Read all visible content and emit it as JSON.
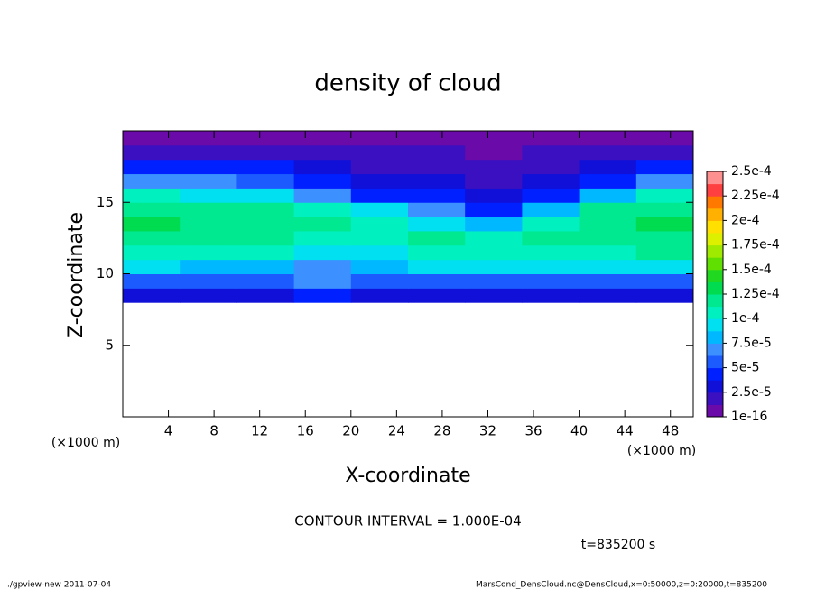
{
  "chart_data": {
    "type": "heatmap",
    "title": "density of cloud",
    "x_label": "X-coordinate",
    "y_label": "Z-coordinate",
    "x_unit_label": "(×1000 m)",
    "y_unit_label": "(×1000 m)",
    "contour_note": "CONTOUR INTERVAL = 1.000E-04",
    "time_label": "t=835200 s",
    "footer_left": "./gpview-new  2011-07-04",
    "footer_right": "MarsCond_DensCloud.nc@DensCloud,x=0:50000,z=0:20000,t=835200",
    "x": [
      2.5,
      7.5,
      12.5,
      17.5,
      22.5,
      27.5,
      32.5,
      37.5,
      42.5,
      47.5
    ],
    "z": [
      8.5,
      9.5,
      10.5,
      11.5,
      12.5,
      13.5,
      14.5,
      15.5,
      16.5,
      17.5,
      18.5,
      19.5
    ],
    "values": [
      [
        3e-05,
        3e-05,
        3e-05,
        4e-05,
        3e-05,
        3e-05,
        3e-05,
        3e-05,
        3e-05,
        3e-05
      ],
      [
        6e-05,
        6e-05,
        6e-05,
        7e-05,
        6e-05,
        6e-05,
        6e-05,
        6e-05,
        6e-05,
        6e-05
      ],
      [
        9e-05,
        8.5e-05,
        8.5e-05,
        7e-05,
        8.5e-05,
        9e-05,
        9e-05,
        9e-05,
        9e-05,
        9.5e-05
      ],
      [
        0.00011,
        0.000105,
        0.000105,
        9e-05,
        9.5e-05,
        0.000105,
        0.000105,
        0.00011,
        0.00011,
        0.000115
      ],
      [
        0.00012,
        0.00012,
        0.000115,
        0.00011,
        0.00011,
        0.000115,
        0.00011,
        0.00012,
        0.000125,
        0.000125
      ],
      [
        0.00013,
        0.000125,
        0.00012,
        0.000115,
        0.00011,
        0.0001,
        8e-05,
        0.00011,
        0.000125,
        0.00013
      ],
      [
        0.000125,
        0.00012,
        0.000115,
        0.000105,
        9e-05,
        7e-05,
        5e-05,
        8e-05,
        0.000115,
        0.000125
      ],
      [
        0.000105,
        0.0001,
        9e-05,
        7e-05,
        5e-05,
        4e-05,
        3e-05,
        5e-05,
        8e-05,
        0.000105
      ],
      [
        7e-05,
        7e-05,
        6e-05,
        5e-05,
        3.5e-05,
        3e-05,
        2e-05,
        3e-05,
        5e-05,
        7e-05
      ],
      [
        5e-05,
        5e-05,
        4e-05,
        3e-05,
        2.5e-05,
        2e-05,
        1.5e-05,
        2e-05,
        3e-05,
        4.5e-05
      ],
      [
        2.5e-05,
        2.5e-05,
        2e-05,
        1.5e-05,
        1.5e-05,
        1.5e-05,
        1.2e-05,
        1.5e-05,
        2e-05,
        2.5e-05
      ],
      [
        1.2e-05,
        1e-05,
        1e-05,
        1e-05,
        8e-06,
        1e-05,
        1e-05,
        1e-05,
        1e-05,
        1.2e-05
      ]
    ],
    "xlim": [
      0,
      50
    ],
    "ylim": [
      0,
      20
    ],
    "xticks": [
      4,
      8,
      12,
      16,
      20,
      24,
      28,
      32,
      36,
      40,
      44,
      48
    ],
    "yticks": [
      5,
      10,
      15
    ],
    "clim": [
      1e-16,
      0.00025
    ],
    "cticks": [
      {
        "value": 1e-16,
        "label": "1e-16"
      },
      {
        "value": 2.5e-05,
        "label": "2.5e-5"
      },
      {
        "value": 5e-05,
        "label": "5e-5"
      },
      {
        "value": 7.5e-05,
        "label": "7.5e-5"
      },
      {
        "value": 0.0001,
        "label": "1e-4"
      },
      {
        "value": 0.000125,
        "label": "1.25e-4"
      },
      {
        "value": 0.00015,
        "label": "1.5e-4"
      },
      {
        "value": 0.000175,
        "label": "1.75e-4"
      },
      {
        "value": 0.0002,
        "label": "2e-4"
      },
      {
        "value": 0.000225,
        "label": "2.25e-4"
      },
      {
        "value": 0.00025,
        "label": "2.5e-4"
      }
    ],
    "colors": [
      "#6a0aa8",
      "#3a10c0",
      "#1010d8",
      "#0020ff",
      "#1c5cff",
      "#3c90ff",
      "#00b8ff",
      "#00e0f0",
      "#00f0c0",
      "#00e890",
      "#00dc50",
      "#20d820",
      "#60e000",
      "#a0ea00",
      "#dcf000",
      "#ffe000",
      "#ffb000",
      "#ff7800",
      "#ff4040",
      "#ff9090"
    ]
  }
}
